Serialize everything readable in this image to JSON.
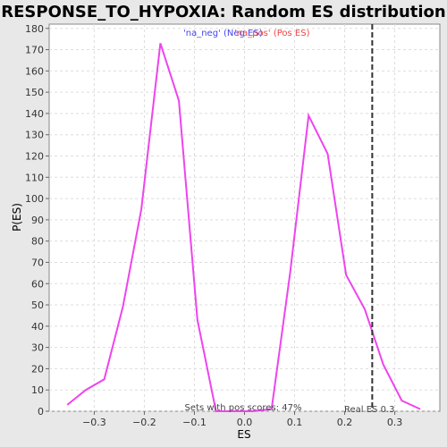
{
  "colors": {
    "background": "#e8e8e8",
    "plot_background": "#ffffff",
    "line": "#ee44ee",
    "neg_legend": "#4444ee",
    "pos_legend": "#ee4444",
    "grid": "#dddddd",
    "marker": "#333333"
  },
  "chart_data": {
    "type": "line",
    "title": "RESPONSE_TO_HYPOXIA: Random ES distribution",
    "xlabel": "ES",
    "ylabel": "P(ES)",
    "xlim": [
      -0.39,
      0.39
    ],
    "ylim": [
      0,
      182
    ],
    "x_ticks": [
      -0.3,
      -0.2,
      -0.1,
      0.0,
      0.1,
      0.2,
      0.3
    ],
    "x_tick_labels": [
      "−0.3",
      "−0.2",
      "−0.1",
      "0.0",
      "0.1",
      "0.2",
      "0.3"
    ],
    "y_ticks": [
      0,
      10,
      20,
      30,
      40,
      50,
      60,
      70,
      80,
      90,
      100,
      110,
      120,
      130,
      140,
      150,
      160,
      170,
      180
    ],
    "grid": true,
    "legend": {
      "neg_label": "'na_neg' (Neg ES)",
      "pos_label": "'na_pos' (Pos ES)",
      "placement": "top"
    },
    "series": [
      {
        "x": [
          -0.354,
          -0.317,
          -0.28,
          -0.243,
          -0.206,
          -0.168,
          -0.131,
          -0.094,
          -0.057,
          -0.02,
          0.017,
          0.054,
          0.091,
          0.128,
          0.166,
          0.203,
          0.24,
          0.277,
          0.314,
          0.351
        ],
        "y": [
          3,
          10,
          15,
          49,
          95,
          173,
          146,
          43,
          0,
          0,
          0,
          1,
          65,
          139,
          121,
          64,
          48,
          22,
          5,
          1
        ]
      }
    ],
    "annotations": {
      "pos_scores_text": "Sets with pos scores: 47%",
      "real_es_text": "Real ES 0.3",
      "real_es_value": 0.255
    }
  }
}
